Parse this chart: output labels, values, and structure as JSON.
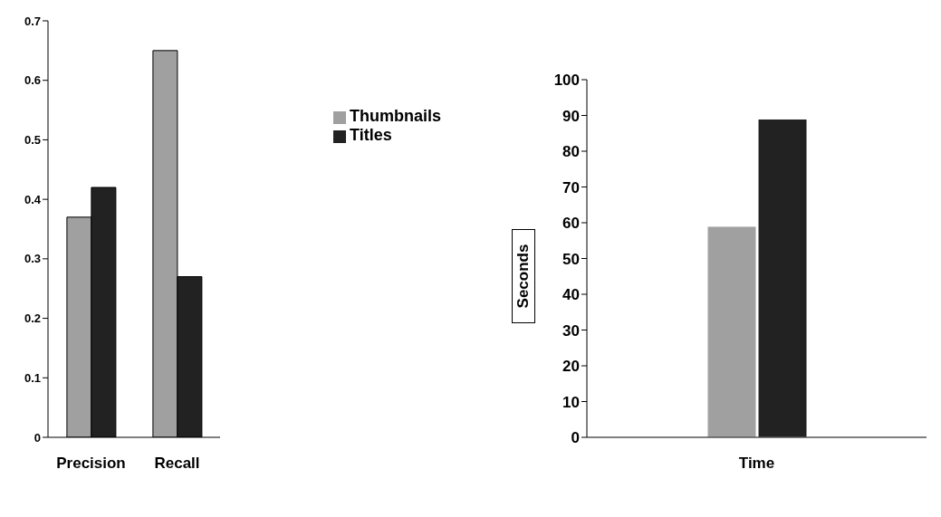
{
  "chart_data": [
    {
      "type": "bar",
      "categories": [
        "Precision",
        "Recall"
      ],
      "series": [
        {
          "name": "Thumbnails",
          "color": "#a0a0a0",
          "values": [
            0.37,
            0.65
          ]
        },
        {
          "name": "Titles",
          "color": "#222222",
          "values": [
            0.42,
            0.27
          ]
        }
      ],
      "ylim": [
        0,
        0.7
      ],
      "yticks": [
        0,
        0.1,
        0.2,
        0.3,
        0.4,
        0.5,
        0.6,
        0.7
      ],
      "grid": false,
      "legend": "right"
    },
    {
      "type": "bar",
      "categories": [
        "Time"
      ],
      "ylabel": "Seconds",
      "series": [
        {
          "color": "#a0a0a0",
          "values": [
            59
          ]
        },
        {
          "color": "#222222",
          "values": [
            89
          ]
        }
      ],
      "ylim": [
        0,
        100
      ],
      "yticks": [
        0,
        10,
        20,
        30,
        40,
        50,
        60,
        70,
        80,
        90,
        100
      ],
      "grid": false,
      "legend": false
    }
  ]
}
